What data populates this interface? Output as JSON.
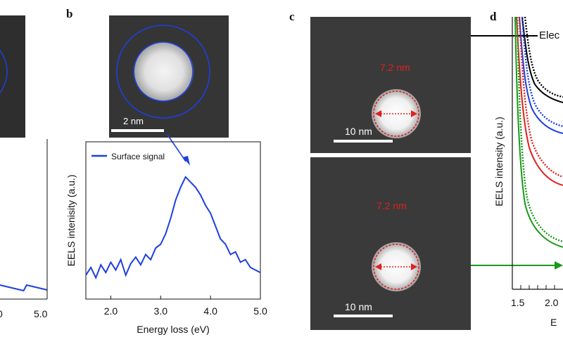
{
  "panel_a": {
    "x_ticks": [
      "0",
      "5.0"
    ]
  },
  "panel_b": {
    "letter": "b",
    "scale_label": "2 nm",
    "legend": "Surface signal",
    "xlabel": "Energy loss (eV)",
    "ylabel": "EELS intenisity (a.u.)",
    "x_ticks": [
      "2.0",
      "3.0",
      "4.0",
      "5.0"
    ]
  },
  "panel_c": {
    "letter": "c",
    "top": {
      "size_label": "7.2 nm",
      "scale_label": "10 nm"
    },
    "bottom": {
      "size_label": "7.2 nm",
      "scale_label": "10 nm"
    }
  },
  "panel_d": {
    "letter": "d",
    "ylabel": "EELS intensity (a.u.)",
    "annotation": "Elec",
    "x_ticks": [
      "1.5",
      "2.0"
    ],
    "xlabel_fragment": "E"
  },
  "colors": {
    "blue": "#1f3fe0",
    "red": "#e02020",
    "green": "#1a9a1a",
    "black": "#000000",
    "image_bg": "#3a3a3a"
  },
  "chart_data": {
    "type": "line",
    "title": "",
    "xlabel": "Energy loss (eV)",
    "ylabel": "EELS intenisity (a.u.)",
    "xlim": [
      1.5,
      5.0
    ],
    "series": [
      {
        "name": "Surface signal",
        "x": [
          1.5,
          1.6,
          1.7,
          1.8,
          1.9,
          2.0,
          2.1,
          2.2,
          2.3,
          2.4,
          2.5,
          2.6,
          2.7,
          2.8,
          2.9,
          3.0,
          3.1,
          3.2,
          3.3,
          3.4,
          3.5,
          3.6,
          3.7,
          3.8,
          3.9,
          4.0,
          4.1,
          4.2,
          4.3,
          4.4,
          4.5,
          4.6,
          4.7,
          4.8,
          4.9,
          5.0
        ],
        "y": [
          0.12,
          0.18,
          0.1,
          0.2,
          0.14,
          0.22,
          0.16,
          0.24,
          0.12,
          0.21,
          0.26,
          0.2,
          0.28,
          0.24,
          0.33,
          0.36,
          0.44,
          0.56,
          0.7,
          0.8,
          0.88,
          0.84,
          0.8,
          0.74,
          0.66,
          0.6,
          0.5,
          0.4,
          0.36,
          0.28,
          0.3,
          0.22,
          0.24,
          0.18,
          0.16,
          0.14
        ]
      }
    ]
  }
}
